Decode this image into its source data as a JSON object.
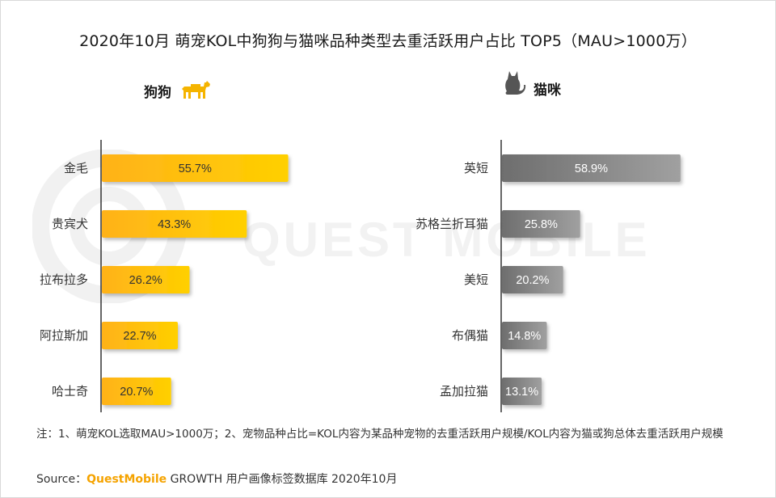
{
  "title": "2020年10月 萌宠KOL中狗狗与猫咪品种类型去重活跃用户占比 TOP5（MAU>1000万）",
  "watermark": "QUEST MOBILE",
  "colors": {
    "dog_bar": "#ffc01e",
    "cat_bar": "#7a7a7a",
    "axis": "#333333"
  },
  "chart_data": [
    {
      "type": "bar",
      "orientation": "horizontal",
      "title": "狗狗",
      "icon": "dog-icon",
      "categories": [
        "金毛",
        "贵宾犬",
        "拉布拉多",
        "阿拉斯加",
        "哈士奇"
      ],
      "values": [
        55.7,
        43.3,
        26.2,
        22.7,
        20.7
      ],
      "labels": [
        "55.7%",
        "43.3%",
        "26.2%",
        "22.7%",
        "20.7%"
      ],
      "unit": "%",
      "xlim": [
        0,
        100
      ]
    },
    {
      "type": "bar",
      "orientation": "horizontal",
      "title": "猫咪",
      "icon": "cat-icon",
      "categories": [
        "英短",
        "苏格兰折耳猫",
        "美短",
        "布偶猫",
        "孟加拉猫"
      ],
      "values": [
        58.9,
        25.8,
        20.2,
        14.8,
        13.1
      ],
      "labels": [
        "58.9%",
        "25.8%",
        "20.2%",
        "14.8%",
        "13.1%"
      ],
      "unit": "%",
      "xlim": [
        0,
        100
      ]
    }
  ],
  "note": "注：1、萌宠KOL选取MAU>1000万；2、宠物品种占比=KOL内容为某品种宠物的去重活跃用户规模/KOL内容为猫或狗总体去重活跃用户规模",
  "source": {
    "prefix": "Source：",
    "brand": "QuestMobile",
    "suffix": " GROWTH 用户画像标签数据库 2020年10月"
  }
}
